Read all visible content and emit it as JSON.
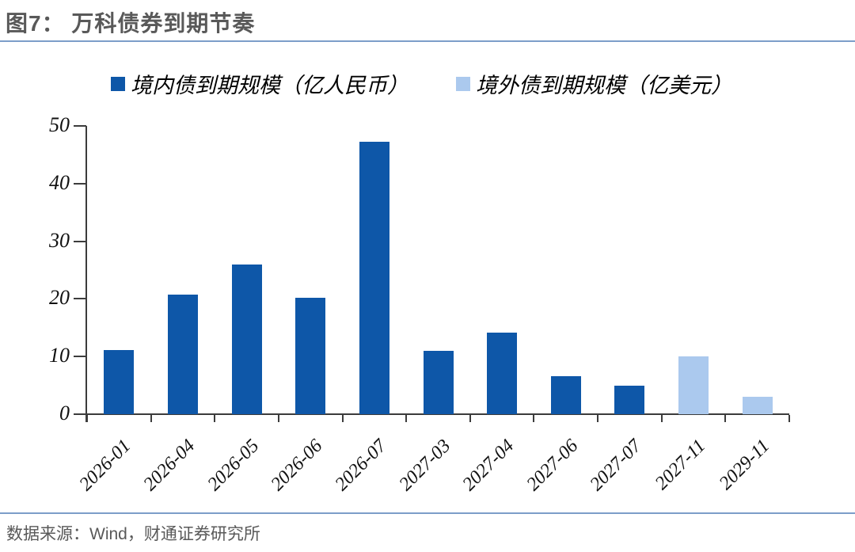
{
  "header": {
    "title": "图7：  万科债券到期节奏"
  },
  "footer": {
    "source": "数据来源：Wind，财通证券研究所"
  },
  "colors": {
    "domestic_bar": "#0E57A8",
    "overseas_bar": "#ABC9EE",
    "divider_line": "#7C9DC9",
    "title_text": "#595959",
    "axis": "#3C3C3C"
  },
  "chart_data": {
    "type": "bar",
    "title": "万科债券到期节奏",
    "categories": [
      "2026-01",
      "2026-04",
      "2026-05",
      "2026-06",
      "2026-07",
      "2027-03",
      "2027-04",
      "2027-06",
      "2027-07",
      "2027-11",
      "2029-11"
    ],
    "series": [
      {
        "name": "境内债到期规模（亿人民币）",
        "color": "#0E57A8",
        "values": [
          11.1,
          20.8,
          25.9,
          20.2,
          47.3,
          11.0,
          14.2,
          6.6,
          5.0,
          null,
          null
        ]
      },
      {
        "name": "境外债到期规模（亿美元）",
        "color": "#ABC9EE",
        "values": [
          null,
          null,
          null,
          null,
          null,
          null,
          null,
          null,
          null,
          10.0,
          3.0
        ]
      }
    ],
    "xlabel": "",
    "ylabel": "",
    "ylim": [
      0,
      50
    ],
    "yticks": [
      0,
      10,
      20,
      30,
      40,
      50
    ],
    "grid": false,
    "legend_position": "top"
  }
}
